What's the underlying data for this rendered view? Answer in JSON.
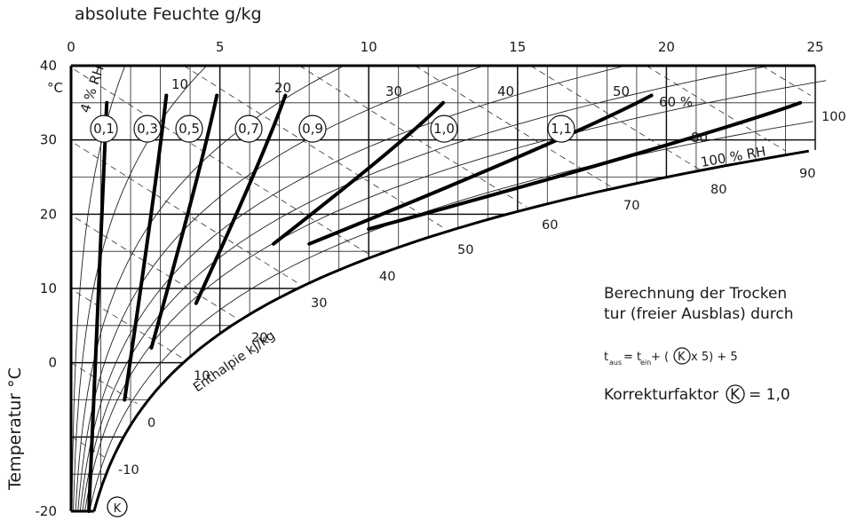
{
  "chart_data": {
    "type": "line",
    "title": "",
    "xlabel": "absolute Feuchte g/kg",
    "ylabel": "Temperatur °C",
    "y_unit": "°C",
    "xlim": [
      0,
      25
    ],
    "ylim": [
      -20,
      40
    ],
    "x_ticks": [
      "0",
      "5",
      "10",
      "15",
      "20",
      "25"
    ],
    "y_ticks": [
      "-20",
      "",
      "0",
      "10",
      "20",
      "30",
      "40"
    ],
    "rh_labels": [
      {
        "value": 4,
        "text": "4 % RH"
      },
      {
        "value": 10,
        "text": "10"
      },
      {
        "value": 20,
        "text": "20"
      },
      {
        "value": 30,
        "text": "30"
      },
      {
        "value": 40,
        "text": "40"
      },
      {
        "value": 50,
        "text": "50"
      },
      {
        "value": 60,
        "text": "60 %"
      },
      {
        "value": 80,
        "text": "80"
      },
      {
        "value": 100,
        "text": "100 % RH"
      }
    ],
    "enthalpy_unit": "Enthalpie kJ/kg",
    "enthalpy_labels": [
      "-10",
      "0",
      "10",
      "20",
      "30",
      "40",
      "50",
      "60",
      "70",
      "80",
      "90",
      "100"
    ],
    "k_factor_symbol": "K",
    "k_series": [
      {
        "name": "0,1",
        "points": [
          [
            0.6,
            -20
          ],
          [
            1.2,
            35
          ]
        ]
      },
      {
        "name": "0,3",
        "points": [
          [
            1.8,
            -5
          ],
          [
            3.2,
            36
          ]
        ]
      },
      {
        "name": "0,5",
        "points": [
          [
            2.7,
            2
          ],
          [
            4.9,
            36
          ]
        ]
      },
      {
        "name": "0,7",
        "points": [
          [
            4.2,
            8
          ],
          [
            7.2,
            36
          ]
        ]
      },
      {
        "name": "0,9",
        "points": [
          [
            6.8,
            16
          ],
          [
            12.5,
            35
          ]
        ]
      },
      {
        "name": "1,0",
        "points": [
          [
            8.0,
            16
          ],
          [
            19.5,
            36
          ]
        ]
      },
      {
        "name": "1,1",
        "points": [
          [
            10.0,
            18
          ],
          [
            24.5,
            35
          ]
        ]
      }
    ]
  },
  "annotation": {
    "line1": "Berechnung der Trocken",
    "line2": "tur (freier Ausblas) durch",
    "formula_t": "t",
    "formula_aus": "aus",
    "formula_eq": "= t",
    "formula_ein": "ein",
    "formula_rest_a": " + (",
    "formula_k": "K",
    "formula_rest_b": " x 5) + 5",
    "correction_text": "Korrekturfaktor",
    "correction_k": "K",
    "correction_value": "= 1,0"
  }
}
